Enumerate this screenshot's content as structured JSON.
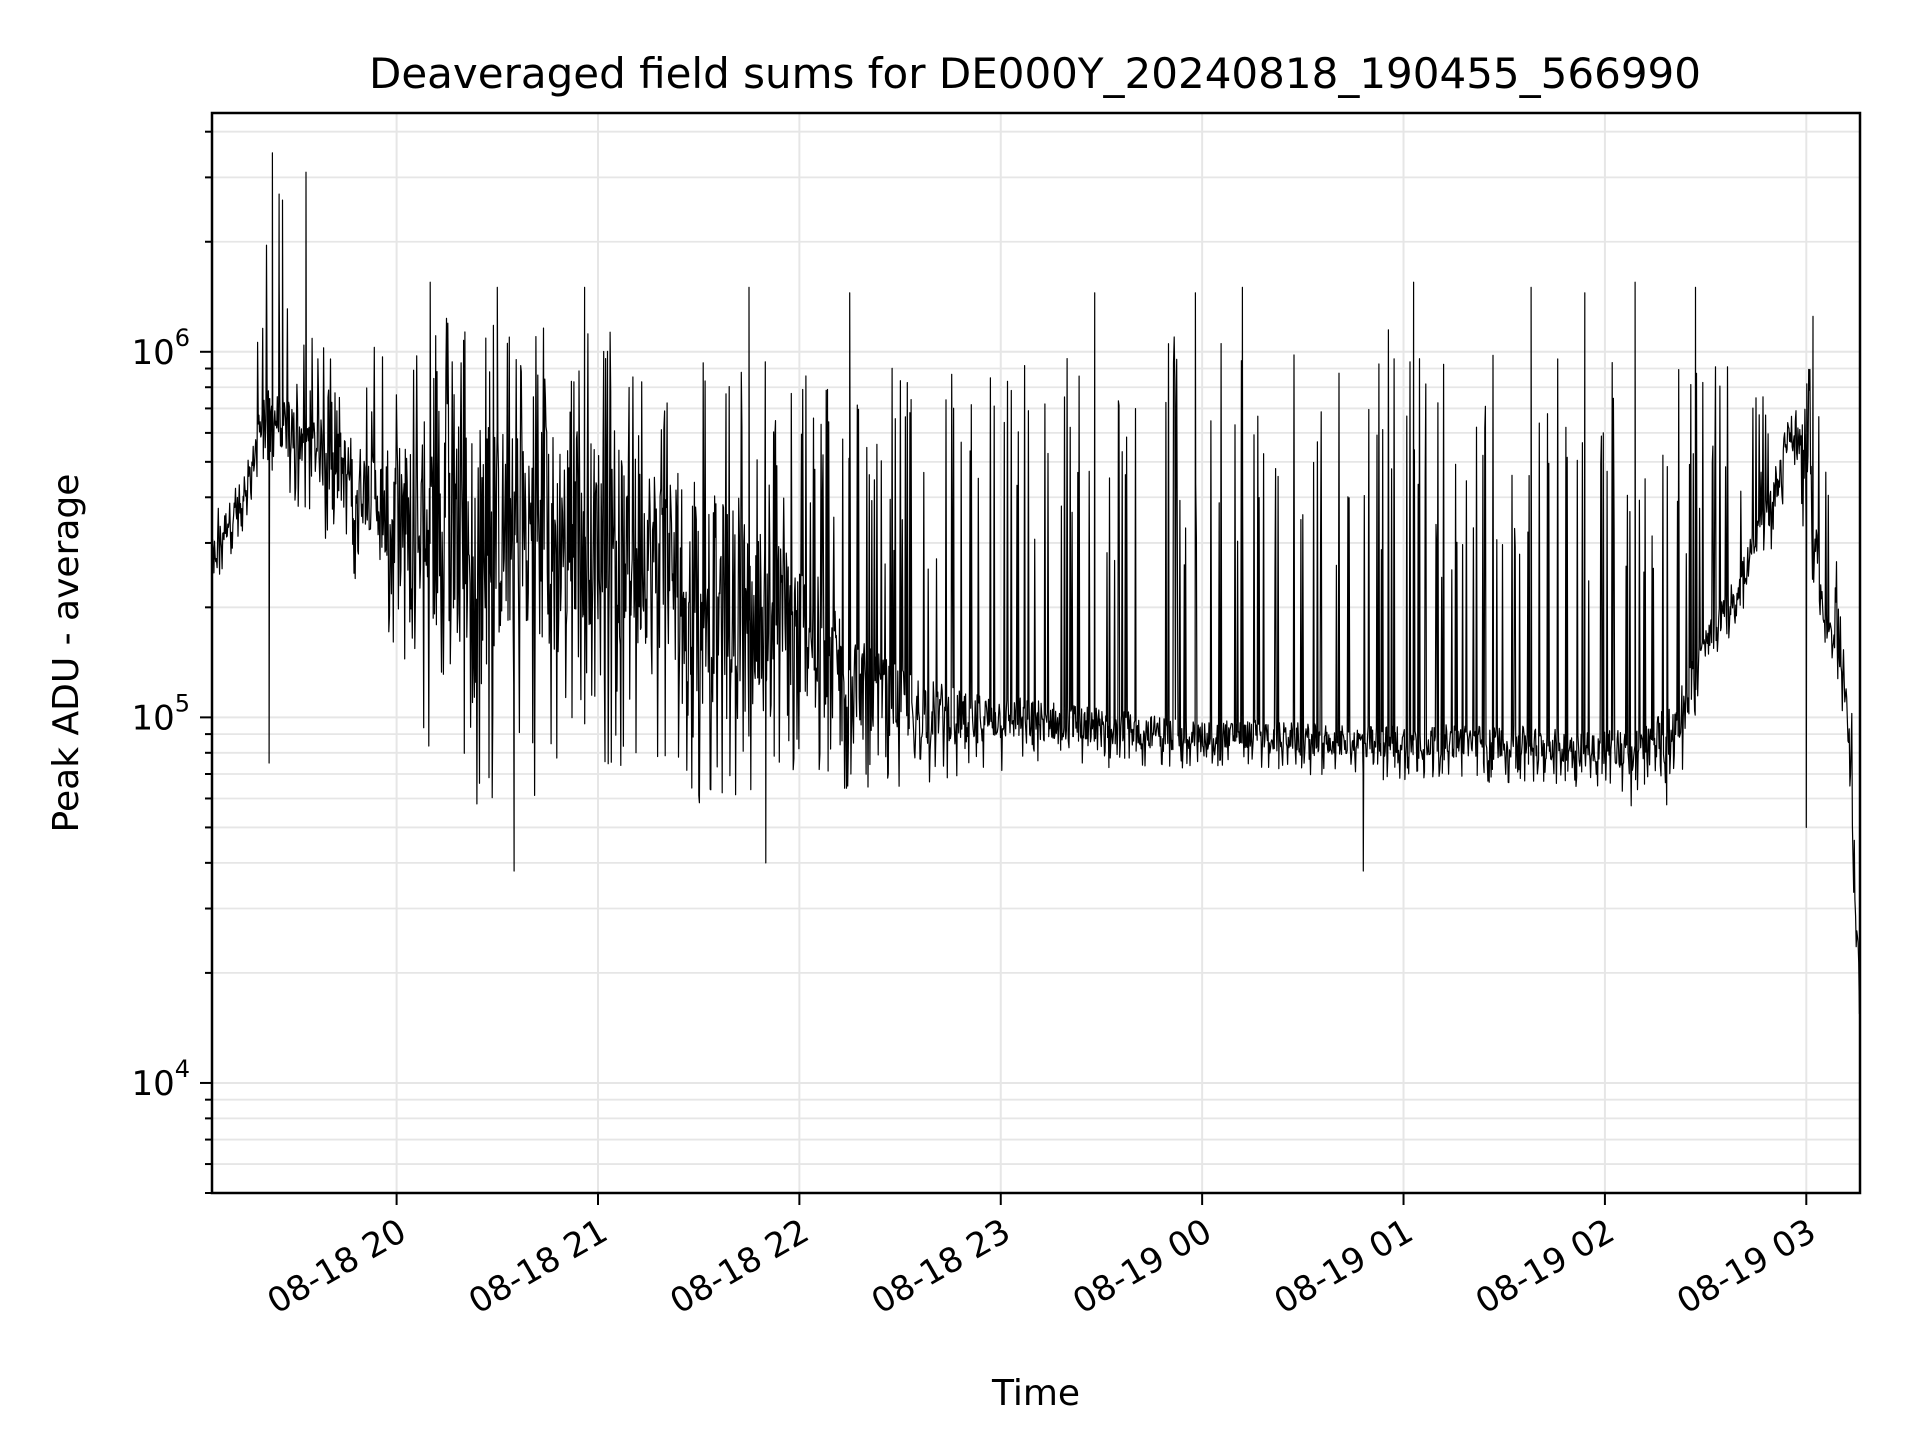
{
  "chart_data": {
    "type": "line",
    "title": "Deaveraged field sums for DE000Y_20240818_190455_566990",
    "xlabel": "Time",
    "ylabel": "Peak ADU - average",
    "yscale": "log",
    "ylim": [
      5000,
      4500000
    ],
    "xlim": [
      "2024-08-18 19:05",
      "2024-08-19 03:16"
    ],
    "grid": true,
    "line_color": "#000000",
    "grid_color": "#e6e6e6",
    "x_ticks": [
      {
        "value": "2024-08-18 20:00",
        "label": "08-18 20"
      },
      {
        "value": "2024-08-18 21:00",
        "label": "08-18 21"
      },
      {
        "value": "2024-08-18 22:00",
        "label": "08-18 22"
      },
      {
        "value": "2024-08-18 23:00",
        "label": "08-18 23"
      },
      {
        "value": "2024-08-19 00:00",
        "label": "08-19 00"
      },
      {
        "value": "2024-08-19 01:00",
        "label": "08-19 01"
      },
      {
        "value": "2024-08-19 02:00",
        "label": "08-19 02"
      },
      {
        "value": "2024-08-19 03:00",
        "label": "08-19 03"
      }
    ],
    "y_ticks": [
      {
        "value": 10000,
        "base": "10",
        "exp": "4"
      },
      {
        "value": 100000,
        "base": "10",
        "exp": "5"
      },
      {
        "value": 1000000,
        "base": "10",
        "exp": "6"
      }
    ],
    "series": [
      {
        "x": [
          "2024-08-18 19:05",
          "2024-08-18 19:10",
          "2024-08-18 19:15",
          "2024-08-18 19:20",
          "2024-08-18 19:25",
          "2024-08-18 19:30",
          "2024-08-18 19:35",
          "2024-08-18 19:40",
          "2024-08-18 19:45",
          "2024-08-18 19:50",
          "2024-08-18 19:55",
          "2024-08-18 20:00",
          "2024-08-18 20:10",
          "2024-08-18 20:20",
          "2024-08-18 20:30",
          "2024-08-18 20:40",
          "2024-08-18 20:50",
          "2024-08-18 21:00",
          "2024-08-18 21:10",
          "2024-08-18 21:20",
          "2024-08-18 21:30",
          "2024-08-18 21:40",
          "2024-08-18 21:50",
          "2024-08-18 22:00",
          "2024-08-18 22:10",
          "2024-08-18 22:20",
          "2024-08-18 22:30",
          "2024-08-18 22:40",
          "2024-08-18 22:50",
          "2024-08-18 23:00",
          "2024-08-18 23:15",
          "2024-08-18 23:30",
          "2024-08-18 23:45",
          "2024-08-19 00:00",
          "2024-08-19 00:15",
          "2024-08-19 00:30",
          "2024-08-19 00:45",
          "2024-08-19 01:00",
          "2024-08-19 01:15",
          "2024-08-19 01:30",
          "2024-08-19 01:45",
          "2024-08-19 02:00",
          "2024-08-19 02:10",
          "2024-08-19 02:20",
          "2024-08-19 02:30",
          "2024-08-19 02:40",
          "2024-08-19 02:50",
          "2024-08-19 02:55",
          "2024-08-19 03:00",
          "2024-08-19 03:05",
          "2024-08-19 03:10",
          "2024-08-19 03:13",
          "2024-08-19 03:16"
        ],
        "low": [
          200000,
          270000,
          300000,
          500000,
          430000,
          380000,
          330000,
          290000,
          250000,
          230000,
          210000,
          120000,
          80000,
          55000,
          55000,
          60000,
          70000,
          75000,
          70000,
          60000,
          55000,
          55000,
          58000,
          60000,
          60000,
          62000,
          62000,
          65000,
          68000,
          70000,
          72000,
          72000,
          72000,
          72000,
          72000,
          70000,
          68000,
          66000,
          66000,
          66000,
          65000,
          64000,
          55000,
          55000,
          130000,
          180000,
          280000,
          470000,
          300000,
          160000,
          120000,
          60000,
          10000
        ],
        "mid": [
          270000,
          350000,
          380000,
          700000,
          650000,
          600000,
          560000,
          500000,
          470000,
          430000,
          400000,
          360000,
          330000,
          320000,
          320000,
          330000,
          330000,
          320000,
          300000,
          270000,
          240000,
          220000,
          200000,
          180000,
          150000,
          120000,
          110000,
          105000,
          100000,
          100000,
          98000,
          95000,
          92000,
          90000,
          90000,
          88000,
          86000,
          86000,
          86000,
          86000,
          84000,
          84000,
          80000,
          90000,
          160000,
          230000,
          400000,
          600000,
          550000,
          200000,
          140000,
          90000,
          15000
        ],
        "high": [
          400000,
          440000,
          460000,
          2000000,
          2500000,
          1000000,
          1100000,
          1100000,
          1100000,
          1150000,
          1200000,
          1300000,
          1300000,
          1350000,
          1300000,
          1250000,
          1200000,
          1200000,
          1150000,
          1100000,
          1050000,
          1000000,
          950000,
          1000000,
          900000,
          800000,
          1000000,
          900000,
          1100000,
          1000000,
          1100000,
          1000000,
          1200000,
          1200000,
          1100000,
          1000000,
          1200000,
          1200000,
          1100000,
          1000000,
          1100000,
          1100000,
          1000000,
          1100000,
          1000000,
          900000,
          700000,
          650000,
          900000,
          900000,
          200000,
          150000,
          20000
        ],
        "spikes": [
          [
            "2024-08-18 19:23",
            3500000
          ],
          [
            "2024-08-18 19:25",
            2700000
          ],
          [
            "2024-08-18 19:26",
            2600000
          ],
          [
            "2024-08-18 19:33",
            3100000
          ],
          [
            "2024-08-18 19:22",
            75000
          ],
          [
            "2024-08-18 20:10",
            1550000
          ],
          [
            "2024-08-18 20:30",
            1500000
          ],
          [
            "2024-08-18 20:35",
            38000
          ],
          [
            "2024-08-18 20:56",
            1500000
          ],
          [
            "2024-08-18 21:45",
            1500000
          ],
          [
            "2024-08-18 21:50",
            40000
          ],
          [
            "2024-08-18 22:15",
            1450000
          ],
          [
            "2024-08-18 23:28",
            1450000
          ],
          [
            "2024-08-18 23:58",
            1450000
          ],
          [
            "2024-08-19 00:12",
            1500000
          ],
          [
            "2024-08-19 00:48",
            38000
          ],
          [
            "2024-08-19 01:03",
            1550000
          ],
          [
            "2024-08-19 01:38",
            1500000
          ],
          [
            "2024-08-19 01:54",
            1450000
          ],
          [
            "2024-08-19 02:09",
            1550000
          ],
          [
            "2024-08-19 02:27",
            1500000
          ],
          [
            "2024-08-19 03:00",
            50000
          ],
          [
            "2024-08-19 03:02",
            1250000
          ]
        ]
      }
    ]
  }
}
